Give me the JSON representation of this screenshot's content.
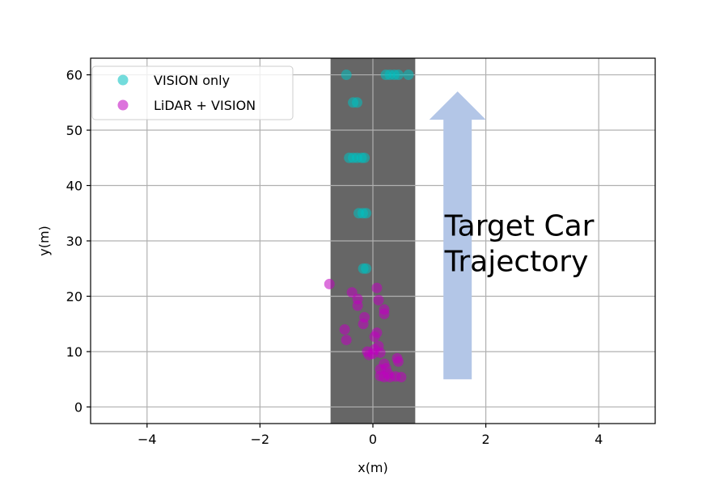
{
  "chart_data": {
    "type": "scatter",
    "title": "",
    "xlabel": "x(m)",
    "ylabel": "y(m)",
    "xlim": [
      -5,
      5
    ],
    "ylim": [
      -3,
      63
    ],
    "xticks": [
      -4,
      -2,
      0,
      2,
      4
    ],
    "xtick_labels": [
      "−4",
      "−2",
      "0",
      "2",
      "4"
    ],
    "yticks": [
      0,
      10,
      20,
      30,
      40,
      50,
      60
    ],
    "ytick_labels": [
      "0",
      "10",
      "20",
      "30",
      "40",
      "50",
      "60"
    ],
    "grid": true,
    "legend_position": "top-left",
    "road": {
      "x_range": [
        -0.75,
        0.75
      ],
      "color": "#666666"
    },
    "series": [
      {
        "name": "VISION only",
        "color": "#00bfbf",
        "points": [
          [
            -0.47,
            60
          ],
          [
            0.23,
            60
          ],
          [
            0.3,
            60
          ],
          [
            0.38,
            60
          ],
          [
            0.45,
            60
          ],
          [
            0.63,
            60
          ],
          [
            -0.35,
            55
          ],
          [
            -0.28,
            55
          ],
          [
            -0.42,
            45
          ],
          [
            -0.35,
            45
          ],
          [
            -0.28,
            45
          ],
          [
            -0.2,
            45
          ],
          [
            -0.15,
            45
          ],
          [
            -0.25,
            35
          ],
          [
            -0.18,
            35
          ],
          [
            -0.12,
            35
          ],
          [
            -0.17,
            25
          ],
          [
            -0.12,
            25
          ]
        ]
      },
      {
        "name": "LiDAR + VISION",
        "color": "#bf00bf",
        "points": [
          [
            -0.77,
            22.2
          ],
          [
            0.07,
            21.5
          ],
          [
            -0.37,
            20.7
          ],
          [
            -0.27,
            19.5
          ],
          [
            0.1,
            19.3
          ],
          [
            -0.27,
            18.3
          ],
          [
            0.2,
            17.6
          ],
          [
            0.2,
            16.8
          ],
          [
            -0.15,
            16.2
          ],
          [
            -0.17,
            15.0
          ],
          [
            -0.5,
            14.0
          ],
          [
            0.07,
            13.4
          ],
          [
            0.03,
            12.7
          ],
          [
            -0.47,
            12.1
          ],
          [
            0.1,
            11.0
          ],
          [
            0.03,
            10.4
          ],
          [
            -0.1,
            10.0
          ],
          [
            0.0,
            9.6
          ],
          [
            -0.07,
            9.4
          ],
          [
            0.13,
            9.8
          ],
          [
            0.43,
            8.8
          ],
          [
            0.45,
            8.2
          ],
          [
            0.2,
            7.8
          ],
          [
            0.23,
            7.0
          ],
          [
            0.13,
            6.8
          ],
          [
            0.27,
            6.0
          ],
          [
            0.13,
            5.6
          ],
          [
            0.2,
            5.4
          ],
          [
            0.3,
            5.4
          ],
          [
            0.4,
            5.5
          ],
          [
            0.5,
            5.4
          ]
        ]
      }
    ],
    "arrow": {
      "x": 1.5,
      "y_start": 5,
      "y_end": 57,
      "color": "#b3c6e7"
    },
    "annotation": {
      "lines": [
        "Target Car",
        "Trajectory"
      ],
      "x": 1.27,
      "y": 26
    }
  }
}
